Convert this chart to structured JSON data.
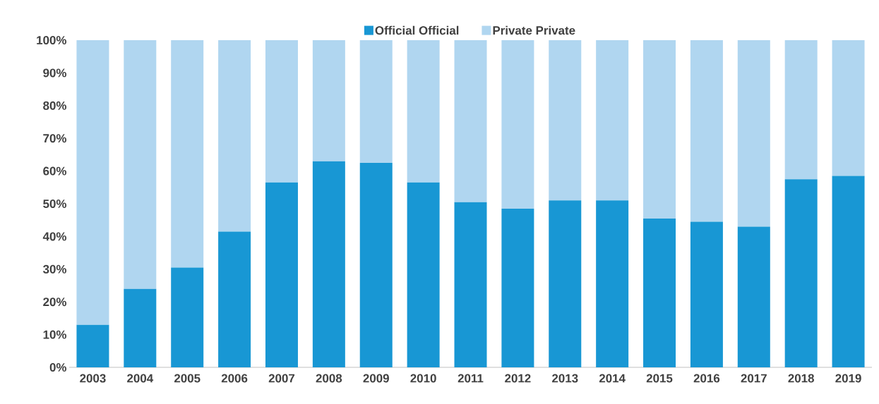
{
  "chart_data": {
    "type": "bar",
    "stacked": true,
    "categories": [
      "2003",
      "2004",
      "2005",
      "2006",
      "2007",
      "2008",
      "2009",
      "2010",
      "2011",
      "2012",
      "2013",
      "2014",
      "2015",
      "2016",
      "2017",
      "2018",
      "2019"
    ],
    "series": [
      {
        "name": "Official Official",
        "color": "#1897d4",
        "values": [
          13,
          24,
          30.5,
          41.5,
          56.5,
          63,
          62.5,
          56.5,
          50.5,
          48.5,
          51,
          51,
          45.5,
          44.5,
          43,
          57.5,
          58.5
        ]
      },
      {
        "name": "Private Private",
        "color": "#b0d6f0",
        "values": [
          87,
          76,
          69.5,
          58.5,
          43.5,
          37,
          37.5,
          43.5,
          49.5,
          51.5,
          49,
          49,
          54.5,
          55.5,
          57,
          42.5,
          41.5
        ]
      }
    ],
    "ylim": [
      0,
      100
    ],
    "yticks": [
      {
        "value": 0,
        "label": "0%"
      },
      {
        "value": 10,
        "label": "10%"
      },
      {
        "value": 20,
        "label": "20%"
      },
      {
        "value": 30,
        "label": "30%"
      },
      {
        "value": 40,
        "label": "40%"
      },
      {
        "value": 50,
        "label": "50%"
      },
      {
        "value": 60,
        "label": "60%"
      },
      {
        "value": 70,
        "label": "70%"
      },
      {
        "value": 80,
        "label": "80%"
      },
      {
        "value": 90,
        "label": "90%"
      },
      {
        "value": 100,
        "label": "100%"
      }
    ],
    "legend": "top"
  }
}
